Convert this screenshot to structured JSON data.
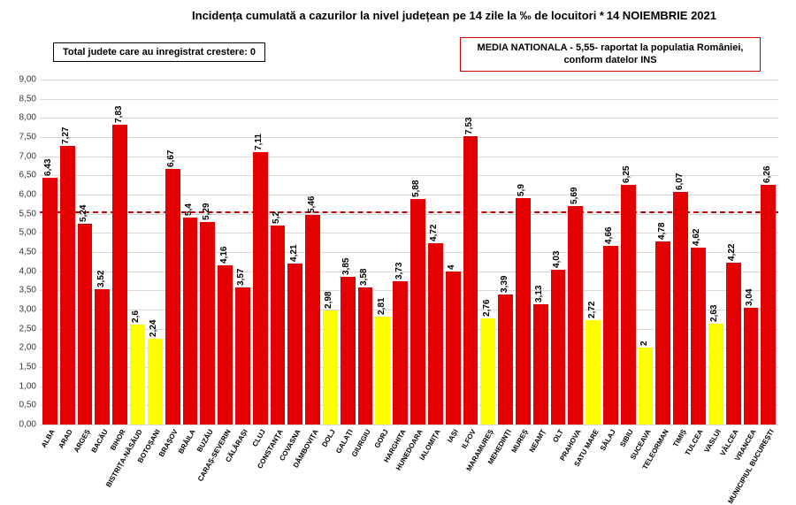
{
  "title": "Incidența cumulată a cazurilor la nivel județean pe 14 zile la ‰ de locuitori *",
  "date": "14 NOIEMBRIE 2021",
  "total_box": "Total judete care au inregistrat crestere: 0",
  "media_box": "MEDIA NATIONALA - 5,55- raportat la populatia României, conform datelor INS",
  "chart": {
    "type": "bar",
    "ylim": [
      0,
      9
    ],
    "ytick_step": 0.5,
    "reference_value": 5.55,
    "reference_color": "#cc0000",
    "grid_color": "#d8d8d8",
    "background_color": "#ffffff",
    "bar_colors": {
      "red": "#e30000",
      "yellow": "#ffff00"
    },
    "title_fontsize": 13,
    "label_fontsize": 10,
    "xtick_fontsize": 8,
    "xtick_rotation": -60,
    "data": [
      {
        "label": "ALBA",
        "value": 6.43,
        "color": "red"
      },
      {
        "label": "ARAD",
        "value": 7.27,
        "color": "red"
      },
      {
        "label": "ARGEȘ",
        "value": 5.24,
        "color": "red"
      },
      {
        "label": "BACĂU",
        "value": 3.52,
        "color": "red"
      },
      {
        "label": "BIHOR",
        "value": 7.83,
        "color": "red"
      },
      {
        "label": "BISTRIȚA-NĂSĂUD",
        "value": 2.6,
        "color": "yellow"
      },
      {
        "label": "BOTOȘANI",
        "value": 2.24,
        "color": "yellow"
      },
      {
        "label": "BRAȘOV",
        "value": 6.67,
        "color": "red"
      },
      {
        "label": "BRĂILA",
        "value": 5.4,
        "color": "red"
      },
      {
        "label": "BUZĂU",
        "value": 5.29,
        "color": "red"
      },
      {
        "label": "CARAȘ-SEVERIN",
        "value": 4.16,
        "color": "red"
      },
      {
        "label": "CĂLĂRAȘI",
        "value": 3.57,
        "color": "red"
      },
      {
        "label": "CLUJ",
        "value": 7.11,
        "color": "red"
      },
      {
        "label": "CONSTANȚA",
        "value": 5.2,
        "color": "red"
      },
      {
        "label": "COVASNA",
        "value": 4.21,
        "color": "red"
      },
      {
        "label": "DÂMBOVIȚA",
        "value": 5.46,
        "color": "red"
      },
      {
        "label": "DOLJ",
        "value": 2.98,
        "color": "yellow"
      },
      {
        "label": "GALAȚI",
        "value": 3.85,
        "color": "red"
      },
      {
        "label": "GIURGIU",
        "value": 3.58,
        "color": "red"
      },
      {
        "label": "GORJ",
        "value": 2.81,
        "color": "yellow"
      },
      {
        "label": "HARGHITA",
        "value": 3.73,
        "color": "red"
      },
      {
        "label": "HUNEDOARA",
        "value": 5.88,
        "color": "red"
      },
      {
        "label": "IALOMIȚA",
        "value": 4.72,
        "color": "red"
      },
      {
        "label": "IAȘI",
        "value": 4.0,
        "color": "red"
      },
      {
        "label": "ILFOV",
        "value": 7.53,
        "color": "red"
      },
      {
        "label": "MARAMUREȘ",
        "value": 2.76,
        "color": "yellow"
      },
      {
        "label": "MEHEDINȚI",
        "value": 3.39,
        "color": "red"
      },
      {
        "label": "MUREȘ",
        "value": 5.9,
        "color": "red"
      },
      {
        "label": "NEAMȚ",
        "value": 3.13,
        "color": "red"
      },
      {
        "label": "OLT",
        "value": 4.03,
        "color": "red"
      },
      {
        "label": "PRAHOVA",
        "value": 5.69,
        "color": "red"
      },
      {
        "label": "SATU MARE",
        "value": 2.72,
        "color": "yellow"
      },
      {
        "label": "SĂLAJ",
        "value": 4.66,
        "color": "red"
      },
      {
        "label": "SIBIU",
        "value": 6.25,
        "color": "red"
      },
      {
        "label": "SUCEAVA",
        "value": 2.0,
        "color": "yellow"
      },
      {
        "label": "TELEORMAN",
        "value": 4.78,
        "color": "red"
      },
      {
        "label": "TIMIȘ",
        "value": 6.07,
        "color": "red"
      },
      {
        "label": "TULCEA",
        "value": 4.62,
        "color": "red"
      },
      {
        "label": "VASLUI",
        "value": 2.63,
        "color": "yellow"
      },
      {
        "label": "VÂLCEA",
        "value": 4.22,
        "color": "red"
      },
      {
        "label": "VRANCEA",
        "value": 3.04,
        "color": "red"
      },
      {
        "label": "MUNICIPIUL BUCUREȘTI",
        "value": 6.26,
        "color": "red"
      }
    ]
  }
}
